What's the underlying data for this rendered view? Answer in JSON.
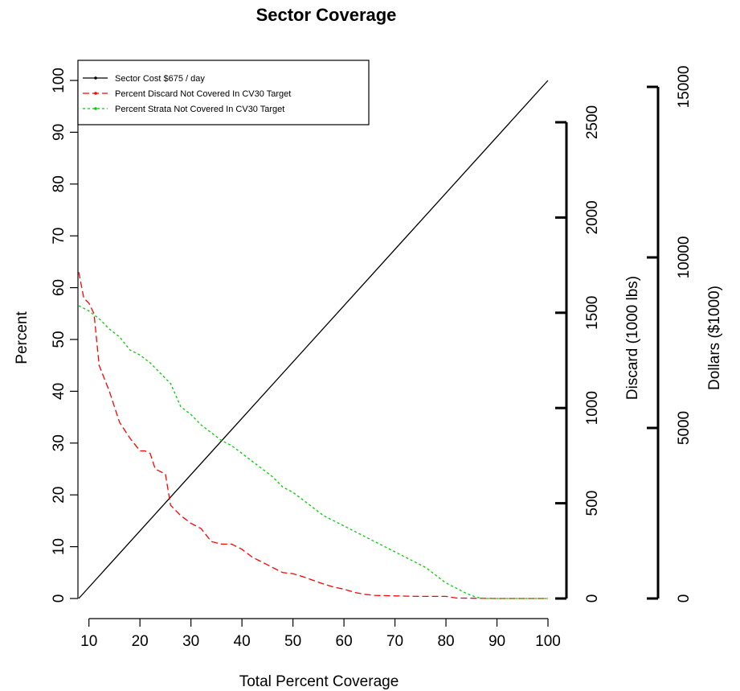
{
  "chart_data": {
    "type": "line",
    "title": "Sector Coverage",
    "xlabel": "Total Percent Coverage",
    "ylabel": "Percent",
    "xlim": [
      8,
      100
    ],
    "ylim": [
      0,
      100
    ],
    "x_ticks": [
      10,
      20,
      30,
      40,
      50,
      60,
      70,
      80,
      90,
      100
    ],
    "y_ticks": [
      0,
      10,
      20,
      30,
      40,
      50,
      60,
      70,
      80,
      90,
      100
    ],
    "secondary_axes": [
      {
        "name": "discard",
        "label": "Discard (1000 lbs)",
        "ticks": [
          0,
          500,
          1000,
          1500,
          2000,
          2500
        ],
        "range": [
          0,
          2500
        ]
      },
      {
        "name": "dollars",
        "label": "Dollars ($1000)",
        "ticks": [
          0,
          5000,
          10000,
          15000
        ],
        "range": [
          0,
          15000
        ]
      }
    ],
    "legend_position": "top-left",
    "series": [
      {
        "name": "Sector Cost $675 / day",
        "color": "#000000",
        "dash": "solid",
        "x": [
          8,
          100
        ],
        "y": [
          0,
          100
        ]
      },
      {
        "name": "Percent Discard Not Covered In CV30 Target",
        "color": "#ff0000",
        "dash": "dashed",
        "x": [
          8,
          9,
          10,
          11,
          11.5,
          12,
          14,
          16,
          18,
          20,
          21,
          22,
          23,
          24,
          25,
          26,
          28,
          30,
          32,
          34,
          36,
          38,
          40,
          42,
          44,
          46,
          48,
          50,
          52,
          54,
          56,
          58,
          60,
          62,
          64,
          66,
          70,
          75,
          80,
          82,
          90,
          100
        ],
        "y": [
          63,
          58,
          57,
          55,
          50,
          45,
          40,
          34,
          31,
          28.5,
          28.5,
          28,
          25,
          24.5,
          24,
          18,
          16,
          14.5,
          13.5,
          11,
          10.5,
          10.5,
          9.5,
          8,
          7,
          6,
          5,
          4.8,
          4.2,
          3.5,
          2.8,
          2.2,
          1.8,
          1.2,
          0.8,
          0.6,
          0.5,
          0.4,
          0.4,
          0.1,
          0,
          0
        ]
      },
      {
        "name": "Percent Strata  Not Covered In CV30 Target",
        "color": "#00cc00",
        "dash": "dotted",
        "x": [
          8,
          10,
          12,
          14,
          16,
          18,
          20,
          22,
          24,
          26,
          28,
          30,
          32,
          34,
          36,
          38,
          40,
          42,
          44,
          46,
          48,
          50,
          52,
          54,
          56,
          58,
          60,
          62,
          64,
          66,
          68,
          70,
          72,
          74,
          76,
          78,
          80,
          82,
          84,
          86,
          88,
          100
        ],
        "y": [
          56.5,
          55.5,
          54,
          52,
          50.5,
          48,
          47,
          45.5,
          43.5,
          41.5,
          37,
          35.5,
          33.5,
          32,
          30.5,
          29.5,
          28,
          26.5,
          25,
          23.5,
          21.5,
          20.5,
          19,
          17.5,
          16,
          15,
          14,
          13,
          12,
          11,
          10,
          9,
          8,
          7,
          6,
          4.5,
          3,
          2,
          1,
          0.2,
          0,
          0
        ]
      }
    ]
  }
}
